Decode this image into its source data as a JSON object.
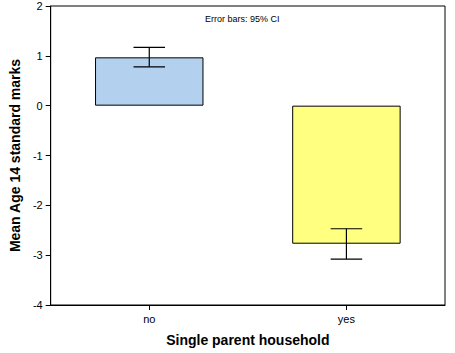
{
  "chart_data": {
    "type": "bar",
    "annotation": "Error bars: 95% CI",
    "xlabel": "Single parent household",
    "ylabel": "Mean Age 14 standard marks",
    "categories": [
      "no",
      "yes"
    ],
    "values": [
      0.97,
      -2.77
    ],
    "error_bars": [
      [
        0.78,
        1.17
      ],
      [
        -3.08,
        -2.47
      ]
    ],
    "colors": [
      "#b3d1ef",
      "#ffff80"
    ],
    "ylim": [
      -4,
      2
    ],
    "yticks": [
      -4,
      -3,
      -2,
      -1,
      0,
      1,
      2
    ],
    "grid": false
  }
}
